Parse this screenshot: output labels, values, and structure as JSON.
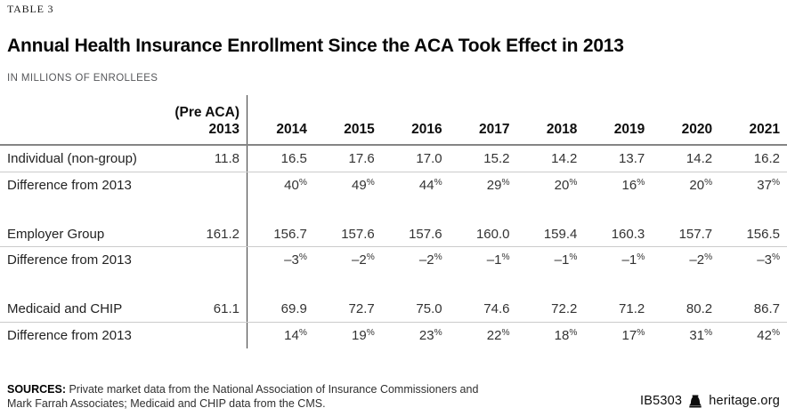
{
  "meta": {
    "eyebrow": "TABLE 3",
    "title": "Annual Health Insurance Enrollment Since the ACA Took Effect in 2013",
    "subtitle": "IN MILLIONS OF ENROLLEES"
  },
  "chart_data": {
    "type": "table",
    "title": "Annual Health Insurance Enrollment Since the ACA Took Effect in 2013",
    "subtitle": "IN MILLIONS OF ENROLLEES",
    "units": "millions of enrollees",
    "pre_header": {
      "line1": "(Pre ACA)",
      "line2": "2013"
    },
    "years": [
      "2014",
      "2015",
      "2016",
      "2017",
      "2018",
      "2019",
      "2020",
      "2021"
    ],
    "rows": [
      {
        "label": "Individual (non-group)",
        "pre": "11.8",
        "values": [
          "16.5",
          "17.6",
          "17.0",
          "15.2",
          "14.2",
          "13.7",
          "14.2",
          "16.2"
        ]
      },
      {
        "label": "Difference from 2013",
        "pre": "",
        "values": [
          "40%",
          "49%",
          "44%",
          "29%",
          "20%",
          "16%",
          "20%",
          "37%"
        ]
      },
      {
        "label": "Employer Group",
        "pre": "161.2",
        "values": [
          "156.7",
          "157.6",
          "157.6",
          "160.0",
          "159.4",
          "160.3",
          "157.7",
          "156.5"
        ]
      },
      {
        "label": "Difference from 2013",
        "pre": "",
        "values": [
          "–3%",
          "–2%",
          "–2%",
          "–1%",
          "–1%",
          "–1%",
          "–2%",
          "–3%"
        ]
      },
      {
        "label": "Medicaid and CHIP",
        "pre": "61.1",
        "values": [
          "69.9",
          "72.7",
          "75.0",
          "74.6",
          "72.2",
          "71.2",
          "80.2",
          "86.7"
        ]
      },
      {
        "label": "Difference from 2013",
        "pre": "",
        "values": [
          "14%",
          "19%",
          "23%",
          "22%",
          "18%",
          "17%",
          "31%",
          "42%"
        ]
      }
    ]
  },
  "footer": {
    "sources_label": "SOURCES:",
    "sources_text": " Private market data from the National Association of Insurance Commissioners and Mark Farrah Associates; Medicaid and CHIP data from the CMS.",
    "report_id": "IB5303",
    "site": "heritage.org",
    "bell_icon": "liberty-bell-icon"
  },
  "colors": {
    "header_rule": "#858585",
    "row_rule": "#cbcbcb",
    "vertical_divider": "#3f3f3f",
    "title_text": "#060606",
    "data_text": "#333333",
    "subtitle_text": "#56575a"
  }
}
